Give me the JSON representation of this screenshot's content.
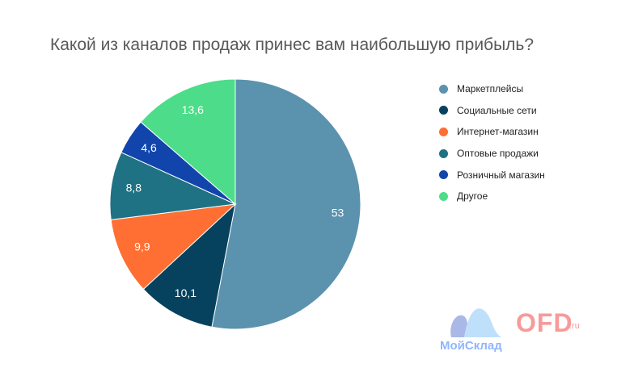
{
  "chart_data": {
    "type": "pie",
    "title": "Какой из каналов продаж принес вам наибольшую прибыль?",
    "slices": [
      {
        "label": "Маркетплейсы",
        "value": 53,
        "value_label": "53",
        "color": "#5b92ad"
      },
      {
        "label": "Социальные сети",
        "value": 10.1,
        "value_label": "10,1",
        "color": "#06425e"
      },
      {
        "label": "Интернет-магазин",
        "value": 9.9,
        "value_label": "9,9",
        "color": "#ff6f33"
      },
      {
        "label": "Оптовые продажи",
        "value": 8.8,
        "value_label": "8,8",
        "color": "#1f7283"
      },
      {
        "label": "Розничный магазин",
        "value": 4.6,
        "value_label": "4,6",
        "color": "#1245ac"
      },
      {
        "label": "Другое",
        "value": 13.6,
        "value_label": "13,6",
        "color": "#4ddd8a"
      }
    ],
    "legend_position": "right"
  },
  "logos": {
    "moysklad_text": "МойСклад",
    "ofd_text": "OFD",
    "ofd_suffix": ".ru"
  }
}
